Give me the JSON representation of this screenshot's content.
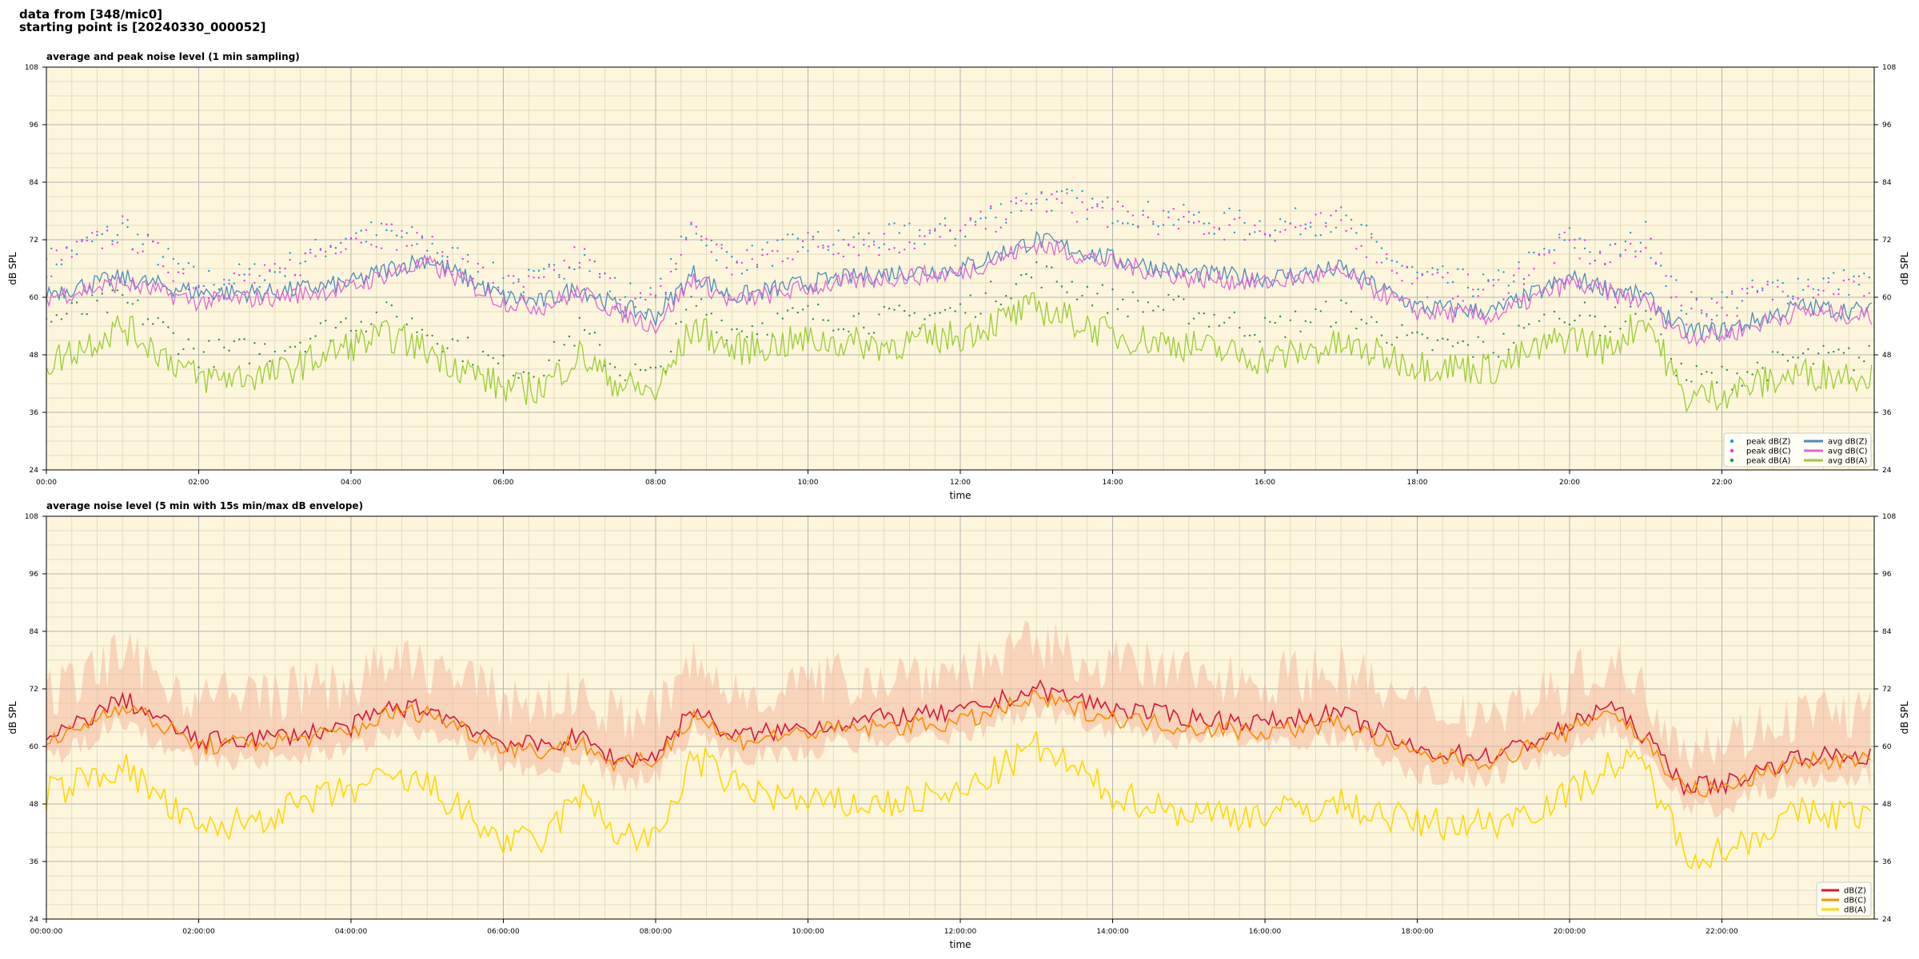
{
  "header": {
    "line1": "data from [348/mic0]",
    "line2": "starting point is [20240330_000052]"
  },
  "chart_data": [
    {
      "type": "line",
      "title": "average and peak noise level (1 min sampling)",
      "xlabel": "time",
      "ylabel": "dB SPL",
      "xlim": [
        "00:00",
        "24:00"
      ],
      "ylim": [
        24,
        108
      ],
      "y_ticks": [
        24,
        36,
        48,
        60,
        72,
        84,
        96,
        108
      ],
      "x_tick_labels": [
        "00:00",
        "02:00",
        "04:00",
        "06:00",
        "08:00",
        "10:00",
        "12:00",
        "14:00",
        "16:00",
        "18:00",
        "20:00",
        "22:00"
      ],
      "x": [
        "00:00",
        "01:00",
        "02:00",
        "03:00",
        "04:00",
        "04:30",
        "05:00",
        "06:00",
        "06:30",
        "07:00",
        "07:30",
        "08:00",
        "08:30",
        "09:00",
        "10:00",
        "11:00",
        "12:00",
        "13:00",
        "14:00",
        "15:00",
        "16:00",
        "17:00",
        "18:00",
        "19:00",
        "20:00",
        "20:30",
        "21:00",
        "21:30",
        "22:00",
        "23:00",
        "23:59"
      ],
      "grid": true,
      "background": "#fdf6dc",
      "legend_position": "bottom-right",
      "series": [
        {
          "name": "peak dB(Z)",
          "kind": "scatter",
          "color": "#1f9ad6",
          "values": [
            66,
            73,
            62,
            64,
            72,
            72,
            70,
            62,
            62,
            68,
            60,
            58,
            74,
            66,
            70,
            71,
            73,
            80,
            77,
            75,
            74,
            75,
            63,
            61,
            71,
            67,
            72,
            57,
            58,
            62,
            62
          ]
        },
        {
          "name": "peak dB(C)",
          "kind": "scatter",
          "color": "#ee33ee",
          "values": [
            65,
            73,
            61,
            63,
            72,
            72,
            69,
            61,
            61,
            68,
            59,
            57,
            74,
            65,
            70,
            70,
            72,
            79,
            76,
            74,
            73,
            74,
            62,
            60,
            70,
            66,
            71,
            56,
            57,
            61,
            61
          ]
        },
        {
          "name": "peak dB(A)",
          "kind": "scatter",
          "color": "#2e8b57",
          "values": [
            54,
            58,
            47,
            48,
            54,
            55,
            52,
            44,
            44,
            52,
            44,
            42,
            58,
            52,
            55,
            54,
            56,
            64,
            58,
            56,
            52,
            56,
            49,
            48,
            56,
            53,
            58,
            42,
            42,
            46,
            46
          ]
        },
        {
          "name": "avg dB(Z)",
          "kind": "line",
          "color": "#4b8bbe",
          "values": [
            61,
            64,
            61,
            61,
            63,
            66,
            68,
            60,
            59,
            62,
            58,
            56,
            65,
            60,
            63,
            65,
            66,
            72,
            68,
            65,
            64,
            66,
            58,
            57,
            64,
            62,
            60,
            53,
            53,
            58,
            57
          ]
        },
        {
          "name": "avg dB(C)",
          "kind": "line",
          "color": "#e066d8",
          "values": [
            60,
            63,
            59,
            60,
            62,
            65,
            67,
            59,
            58,
            61,
            57,
            54,
            64,
            59,
            62,
            64,
            65,
            71,
            67,
            64,
            63,
            65,
            57,
            56,
            63,
            61,
            59,
            52,
            52,
            57,
            56
          ]
        },
        {
          "name": "avg dB(A)",
          "kind": "line",
          "color": "#9acd32",
          "values": [
            46,
            54,
            43,
            44,
            50,
            52,
            49,
            41,
            41,
            48,
            42,
            40,
            54,
            49,
            51,
            50,
            52,
            58,
            52,
            50,
            47,
            50,
            46,
            45,
            52,
            49,
            56,
            39,
            40,
            44,
            44
          ]
        }
      ]
    },
    {
      "type": "line",
      "title": "average noise level (5 min with 15s min/max dB envelope)",
      "xlabel": "time",
      "ylabel": "dB SPL",
      "xlim": [
        "00:00:00",
        "24:00:00"
      ],
      "ylim": [
        24,
        108
      ],
      "y_ticks": [
        24,
        36,
        48,
        60,
        72,
        84,
        96,
        108
      ],
      "x_tick_labels": [
        "00:00:00",
        "02:00:00",
        "04:00:00",
        "06:00:00",
        "08:00:00",
        "10:00:00",
        "12:00:00",
        "14:00:00",
        "16:00:00",
        "18:00:00",
        "20:00:00",
        "22:00:00"
      ],
      "x": [
        "00:00:00",
        "01:00:00",
        "02:00:00",
        "03:00:00",
        "04:00:00",
        "04:30:00",
        "05:00:00",
        "06:00:00",
        "06:30:00",
        "07:00:00",
        "07:30:00",
        "08:00:00",
        "08:30:00",
        "09:00:00",
        "10:00:00",
        "11:00:00",
        "12:00:00",
        "13:00:00",
        "14:00:00",
        "15:00:00",
        "16:00:00",
        "17:00:00",
        "18:00:00",
        "19:00:00",
        "20:00:00",
        "20:30:00",
        "21:00:00",
        "21:30:00",
        "22:00:00",
        "23:00:00",
        "23:59:00"
      ],
      "grid": true,
      "background": "#fdf6dc",
      "legend_position": "bottom-right",
      "series": [
        {
          "name": "dB(Z)",
          "kind": "line",
          "color": "#dc143c",
          "values": [
            61,
            70,
            61,
            62,
            64,
            68,
            68,
            61,
            60,
            62,
            57,
            58,
            68,
            62,
            64,
            66,
            67,
            72,
            68,
            66,
            65,
            67,
            59,
            58,
            64,
            69,
            62,
            52,
            52,
            58,
            58
          ]
        },
        {
          "name": "dB(C)",
          "kind": "line",
          "color": "#ff8c00",
          "values": [
            60,
            69,
            60,
            61,
            63,
            67,
            67,
            60,
            59,
            61,
            56,
            57,
            67,
            61,
            63,
            64,
            65,
            70,
            66,
            64,
            63,
            65,
            58,
            57,
            63,
            68,
            61,
            51,
            51,
            57,
            57
          ]
        },
        {
          "name": "dB(A)",
          "kind": "line",
          "color": "#ffd700",
          "values": [
            50,
            56,
            42,
            46,
            51,
            53,
            52,
            40,
            40,
            50,
            42,
            40,
            58,
            52,
            48,
            48,
            50,
            60,
            50,
            46,
            46,
            48,
            44,
            44,
            50,
            56,
            56,
            38,
            38,
            46,
            46
          ]
        }
      ]
    }
  ]
}
